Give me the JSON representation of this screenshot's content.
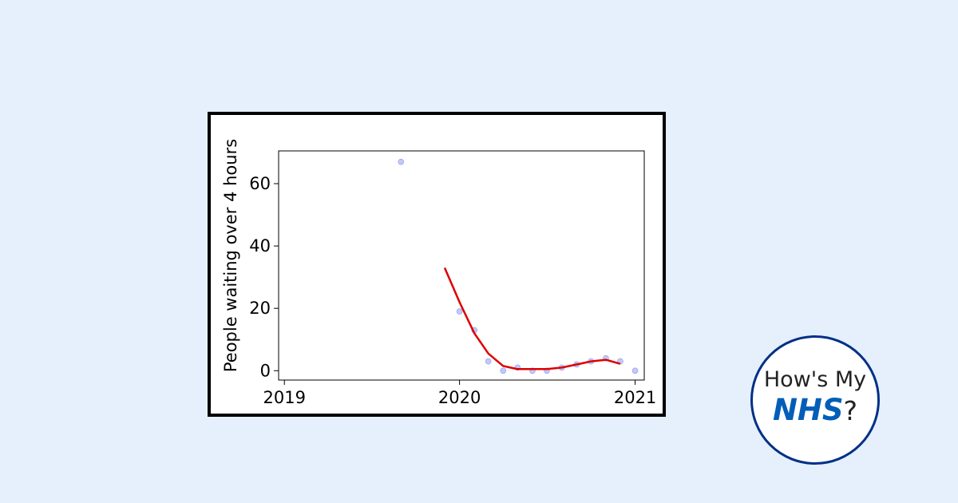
{
  "chart_data": {
    "type": "scatter",
    "ylabel": "People waiting over 4 hours",
    "xlabel": "",
    "x_ticks": [
      "2019",
      "2020",
      "2021"
    ],
    "y_ticks": [
      0,
      20,
      40,
      60
    ],
    "xlim": [
      "2018-12-20",
      "2021-01-20"
    ],
    "ylim": [
      -3,
      70.5
    ],
    "series": [
      {
        "kind": "points",
        "color": "#aab0f5",
        "points": [
          {
            "x": "2019-09-01",
            "y": 67
          },
          {
            "x": "2020-01-01",
            "y": 19
          },
          {
            "x": "2020-02-01",
            "y": 13
          },
          {
            "x": "2020-03-01",
            "y": 3
          },
          {
            "x": "2020-04-01",
            "y": 0
          },
          {
            "x": "2020-05-01",
            "y": 1
          },
          {
            "x": "2020-06-01",
            "y": 0
          },
          {
            "x": "2020-07-01",
            "y": 0
          },
          {
            "x": "2020-08-01",
            "y": 1
          },
          {
            "x": "2020-09-01",
            "y": 2
          },
          {
            "x": "2020-10-01",
            "y": 3
          },
          {
            "x": "2020-11-01",
            "y": 4
          },
          {
            "x": "2020-12-01",
            "y": 3
          },
          {
            "x": "2021-01-01",
            "y": 0
          }
        ]
      },
      {
        "kind": "line",
        "color": "#dd0000",
        "points": [
          {
            "x": "2019-12-01",
            "y": 33
          },
          {
            "x": "2020-01-01",
            "y": 22
          },
          {
            "x": "2020-02-01",
            "y": 12
          },
          {
            "x": "2020-03-01",
            "y": 5.5
          },
          {
            "x": "2020-04-01",
            "y": 1.5
          },
          {
            "x": "2020-05-01",
            "y": 0.5
          },
          {
            "x": "2020-06-01",
            "y": 0.5
          },
          {
            "x": "2020-07-01",
            "y": 0.5
          },
          {
            "x": "2020-08-01",
            "y": 1
          },
          {
            "x": "2020-09-01",
            "y": 2
          },
          {
            "x": "2020-10-01",
            "y": 3
          },
          {
            "x": "2020-11-01",
            "y": 3.5
          },
          {
            "x": "2020-12-01",
            "y": 2.2
          }
        ]
      }
    ],
    "grid": false,
    "legend": "none"
  },
  "logo": {
    "line1": "How's My",
    "brand": "NHS",
    "suffix": "?"
  },
  "colors": {
    "background": "#e6effc",
    "nhs_blue": "#005eb8",
    "logo_border": "#003087"
  }
}
